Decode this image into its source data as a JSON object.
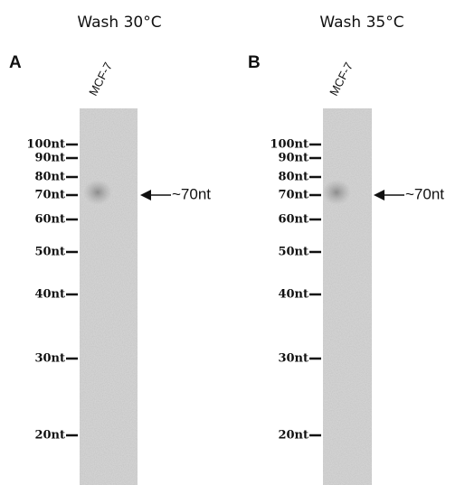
{
  "panels": [
    {
      "letter": "A",
      "title": "Wash 30°C",
      "lane": "MCF-7",
      "markers": [
        "100nt",
        "90nt",
        "80nt",
        "70nt",
        "60nt",
        "50nt",
        "40nt",
        "30nt",
        "20nt"
      ],
      "arrow_label": "~70nt"
    },
    {
      "letter": "B",
      "title": "Wash 35°C",
      "lane": "MCF-7",
      "markers": [
        "100nt",
        "90nt",
        "80nt",
        "70nt",
        "60nt",
        "50nt",
        "40nt",
        "30nt",
        "20nt"
      ],
      "arrow_label": "~70nt"
    }
  ]
}
